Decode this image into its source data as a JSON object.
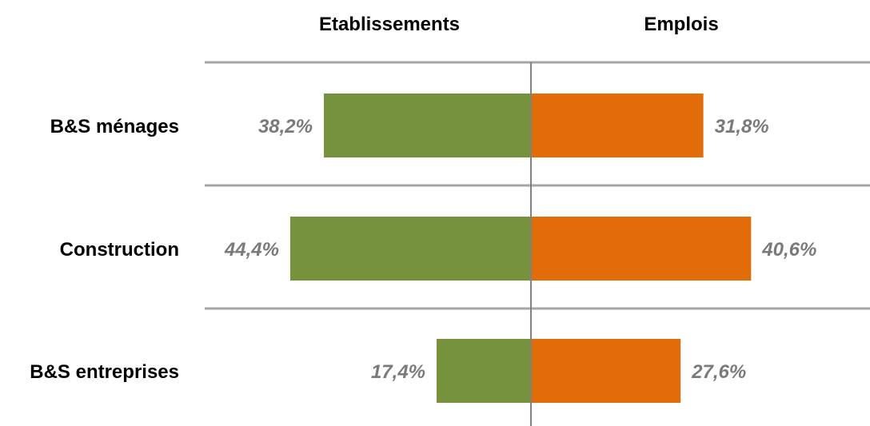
{
  "chart_data": {
    "type": "bar",
    "orientation": "horizontal-diverging",
    "headers": {
      "left": "Etablissements",
      "right": "Emplois"
    },
    "categories": [
      "B&S ménages",
      "Construction",
      "B&S entreprises"
    ],
    "series": [
      {
        "name": "Etablissements",
        "side": "left",
        "color": "#76923c",
        "values": [
          38.2,
          44.4,
          17.4
        ],
        "labels": [
          "38,2%",
          "44,4%",
          "17,4%"
        ]
      },
      {
        "name": "Emplois",
        "side": "right",
        "color": "#e36c0a",
        "values": [
          31.8,
          40.6,
          27.6
        ],
        "labels": [
          "31,8%",
          "40,6%",
          "27,6%"
        ]
      }
    ],
    "unit": "%",
    "axis_max": 50,
    "grid": "horizontal separators",
    "colors": {
      "gridline": "#a6a6a6",
      "axis": "#808080",
      "value_text": "#7a7a7a"
    }
  }
}
